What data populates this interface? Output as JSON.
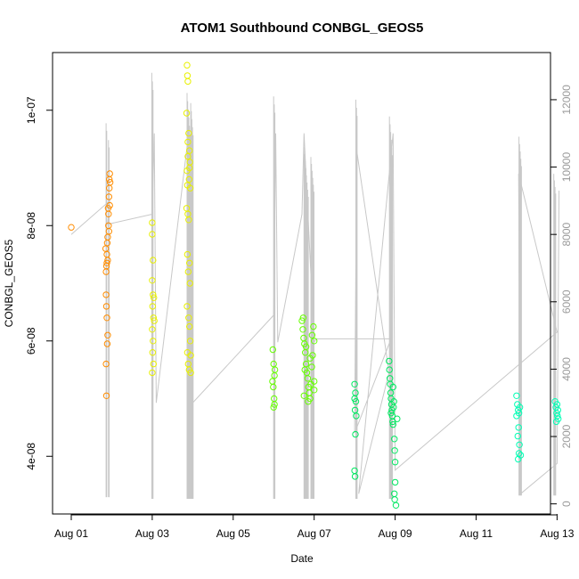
{
  "chart_data": {
    "type": "scatter",
    "title": "ATOM1 Southbound CONBGL_GEOS5",
    "xlabel": "Date",
    "ylabel": "CONBGL_GEOS5",
    "x_tick_labels": [
      "Aug 01",
      "Aug 03",
      "Aug 05",
      "Aug 07",
      "Aug 09",
      "Aug 11",
      "Aug 13"
    ],
    "x_tick_values": [
      1,
      3,
      5,
      7,
      9,
      11,
      13
    ],
    "xlim": [
      1,
      13.3
    ],
    "y_left": {
      "scale_min": 3e-08,
      "scale_max": 1.1e-07,
      "ticks": [
        {
          "value": 4e-08,
          "label": "4e-08"
        },
        {
          "value": 6e-08,
          "label": "6e-08"
        },
        {
          "value": 8e-08,
          "label": "8e-08"
        },
        {
          "value": 1e-07,
          "label": "1e-07"
        }
      ]
    },
    "y_right": {
      "scale_min": -300,
      "scale_max": 13400,
      "ticks": [
        {
          "value": 0,
          "label": "0"
        },
        {
          "value": 2000,
          "label": "2000"
        },
        {
          "value": 4000,
          "label": "4000"
        },
        {
          "value": 6000,
          "label": "6000"
        },
        {
          "value": 8000,
          "label": "8000"
        },
        {
          "value": 10000,
          "label": "10000"
        },
        {
          "value": 12000,
          "label": "12000"
        }
      ]
    },
    "altitude_line_color": "#c8c8c8",
    "altitude_path": [
      [
        1.0,
        8000
      ],
      [
        1.95,
        9000
      ],
      [
        1.9,
        8300
      ],
      [
        3.0,
        8600
      ],
      [
        3.05,
        11000
      ],
      [
        3.1,
        3000
      ],
      [
        3.9,
        11000
      ],
      [
        4.0,
        3000
      ],
      [
        6.0,
        5600
      ],
      [
        6.05,
        11000
      ],
      [
        6.1,
        4800
      ],
      [
        6.7,
        8600
      ],
      [
        6.75,
        11000
      ],
      [
        7.0,
        4800
      ],
      [
        7.05,
        4900
      ],
      [
        8.9,
        4900
      ],
      [
        8.0,
        2100
      ],
      [
        8.05,
        10500
      ],
      [
        8.85,
        3900
      ],
      [
        8.1,
        300
      ],
      [
        8.95,
        11000
      ],
      [
        9.0,
        1000
      ],
      [
        13.0,
        5100
      ],
      [
        12.05,
        9800
      ],
      [
        12.1,
        300
      ],
      [
        13.0,
        1200
      ],
      [
        13.05,
        9300
      ]
    ],
    "altitude_spikes": [
      {
        "day": 1.86,
        "low": 200,
        "high": 11300,
        "n": 2
      },
      {
        "day": 1.92,
        "low": 200,
        "high": 10800,
        "n": 2
      },
      {
        "day": 2.99,
        "low": 150,
        "high": 12800,
        "n": 3
      },
      {
        "day": 3.86,
        "low": 150,
        "high": 12200,
        "n": 6
      },
      {
        "day": 3.95,
        "low": 150,
        "high": 11900,
        "n": 5
      },
      {
        "day": 6.0,
        "low": 150,
        "high": 12100,
        "n": 3
      },
      {
        "day": 6.75,
        "low": 150,
        "high": 10600,
        "n": 8
      },
      {
        "day": 6.92,
        "low": 150,
        "high": 10300,
        "n": 6
      },
      {
        "day": 8.03,
        "low": 150,
        "high": 12000,
        "n": 3
      },
      {
        "day": 8.86,
        "low": 150,
        "high": 11500,
        "n": 6
      },
      {
        "day": 12.06,
        "low": 250,
        "high": 10900,
        "n": 5
      },
      {
        "day": 12.92,
        "low": 250,
        "high": 9800,
        "n": 4
      }
    ],
    "series": [
      {
        "color": "#ff8c00",
        "points": [
          [
            1.0,
            7.97e-08
          ],
          [
            1.85,
            7.6e-08
          ],
          [
            1.87,
            7.3e-08
          ],
          [
            1.88,
            7.5e-08
          ],
          [
            1.9,
            7.4e-08
          ],
          [
            1.86,
            7.2e-08
          ],
          [
            1.89,
            7.7e-08
          ],
          [
            1.87,
            6.6e-08
          ],
          [
            1.88,
            6.4e-08
          ],
          [
            1.9,
            6.1e-08
          ],
          [
            1.89,
            5.95e-08
          ],
          [
            1.86,
            5.6e-08
          ],
          [
            1.87,
            5.05e-08
          ],
          [
            1.91,
            8.3e-08
          ],
          [
            1.93,
            8.5e-08
          ],
          [
            1.94,
            8.8e-08
          ],
          [
            1.95,
            8.9e-08
          ],
          [
            1.92,
            8.2e-08
          ],
          [
            1.93,
            7.9e-08
          ],
          [
            1.94,
            8.65e-08
          ],
          [
            1.95,
            8.35e-08
          ],
          [
            1.92,
            8e-08
          ],
          [
            1.96,
            8.75e-08
          ],
          [
            1.88,
            7.35e-08
          ],
          [
            1.9,
            7.8e-08
          ],
          [
            1.86,
            6.8e-08
          ]
        ]
      },
      {
        "color": "#e8f000",
        "points": [
          [
            3.0,
            8.05e-08
          ],
          [
            3.0,
            7.85e-08
          ],
          [
            3.02,
            7.4e-08
          ],
          [
            3.0,
            7.05e-08
          ],
          [
            3.02,
            6.8e-08
          ],
          [
            3.01,
            6.6e-08
          ],
          [
            3.03,
            6.4e-08
          ],
          [
            3.0,
            6.2e-08
          ],
          [
            3.02,
            6e-08
          ],
          [
            3.01,
            5.8e-08
          ],
          [
            3.03,
            5.6e-08
          ],
          [
            3.0,
            5.45e-08
          ],
          [
            3.05,
            6.35e-08
          ],
          [
            3.04,
            6.75e-08
          ],
          [
            3.86,
            1.078e-07
          ],
          [
            3.87,
            1.06e-07
          ],
          [
            3.88,
            1.05e-07
          ],
          [
            3.85,
            9.95e-08
          ],
          [
            3.9,
            9.6e-08
          ],
          [
            3.92,
            9.3e-08
          ],
          [
            3.88,
            9.2e-08
          ],
          [
            3.93,
            9.1e-08
          ],
          [
            3.86,
            8.95e-08
          ],
          [
            3.91,
            8.8e-08
          ],
          [
            3.87,
            8.7e-08
          ],
          [
            3.94,
            8.65e-08
          ],
          [
            3.85,
            8.3e-08
          ],
          [
            3.88,
            8.2e-08
          ],
          [
            3.9,
            8.1e-08
          ],
          [
            3.87,
            7.5e-08
          ],
          [
            3.92,
            7.35e-08
          ],
          [
            3.89,
            7.2e-08
          ],
          [
            3.93,
            7e-08
          ],
          [
            3.86,
            6.6e-08
          ],
          [
            3.9,
            6.4e-08
          ],
          [
            3.92,
            6.25e-08
          ],
          [
            3.94,
            6e-08
          ],
          [
            3.87,
            5.8e-08
          ],
          [
            3.89,
            5.6e-08
          ],
          [
            3.91,
            5.5e-08
          ],
          [
            3.95,
            5.45e-08
          ],
          [
            3.88,
            9.45e-08
          ],
          [
            3.92,
            9e-08
          ],
          [
            3.95,
            5.75e-08
          ]
        ]
      },
      {
        "color": "#66ff00",
        "points": [
          [
            5.98,
            5.85e-08
          ],
          [
            6.0,
            5.6e-08
          ],
          [
            6.02,
            5.4e-08
          ],
          [
            5.99,
            5.2e-08
          ],
          [
            6.01,
            5e-08
          ],
          [
            6.0,
            4.85e-08
          ],
          [
            6.03,
            5.5e-08
          ],
          [
            5.97,
            5.3e-08
          ],
          [
            6.02,
            4.9e-08
          ],
          [
            6.7,
            6.35e-08
          ],
          [
            6.72,
            6.2e-08
          ],
          [
            6.74,
            6.05e-08
          ],
          [
            6.76,
            5.95e-08
          ],
          [
            6.78,
            5.8e-08
          ],
          [
            6.8,
            5.6e-08
          ],
          [
            6.82,
            5.45e-08
          ],
          [
            6.84,
            5.35e-08
          ],
          [
            6.86,
            5.2e-08
          ],
          [
            6.88,
            5.1e-08
          ],
          [
            6.9,
            5e-08
          ],
          [
            6.92,
            5.25e-08
          ],
          [
            6.94,
            5.55e-08
          ],
          [
            6.96,
            5.75e-08
          ],
          [
            6.98,
            6.25e-08
          ],
          [
            7.0,
            6e-08
          ],
          [
            7.0,
            5.3e-08
          ],
          [
            6.75,
            5.05e-08
          ],
          [
            6.85,
            4.95e-08
          ],
          [
            6.73,
            6.4e-08
          ],
          [
            6.8,
            5.9e-08
          ],
          [
            6.9,
            5.7e-08
          ],
          [
            7.0,
            5.15e-08
          ],
          [
            6.95,
            6.1e-08
          ],
          [
            6.77,
            5.5e-08
          ]
        ]
      },
      {
        "color": "#00e860",
        "points": [
          [
            8.0,
            5.25e-08
          ],
          [
            8.02,
            5.1e-08
          ],
          [
            8.03,
            4.95e-08
          ],
          [
            8.01,
            4.8e-08
          ],
          [
            8.04,
            4.7e-08
          ],
          [
            8.0,
            5e-08
          ],
          [
            8.02,
            4.38e-08
          ],
          [
            8.0,
            3.75e-08
          ],
          [
            8.01,
            3.65e-08
          ],
          [
            8.85,
            5.65e-08
          ],
          [
            8.86,
            5.5e-08
          ],
          [
            8.87,
            5.35e-08
          ],
          [
            8.88,
            5.25e-08
          ],
          [
            8.89,
            5.1e-08
          ],
          [
            8.9,
            5e-08
          ],
          [
            8.91,
            4.9e-08
          ],
          [
            8.92,
            4.8e-08
          ],
          [
            8.93,
            4.7e-08
          ],
          [
            8.94,
            4.6e-08
          ],
          [
            8.95,
            4.55e-08
          ],
          [
            8.96,
            4.85e-08
          ],
          [
            8.97,
            4.95e-08
          ],
          [
            8.98,
            4.3e-08
          ],
          [
            8.99,
            4.1e-08
          ],
          [
            9.0,
            3.9e-08
          ],
          [
            9.0,
            3.55e-08
          ],
          [
            8.98,
            3.35e-08
          ],
          [
            8.99,
            3.25e-08
          ],
          [
            9.02,
            3.15e-08
          ],
          [
            8.9,
            4.75e-08
          ],
          [
            8.95,
            5.2e-08
          ],
          [
            9.05,
            4.65e-08
          ]
        ]
      },
      {
        "color": "#00ffb4",
        "points": [
          [
            12.0,
            5.05e-08
          ],
          [
            12.02,
            4.9e-08
          ],
          [
            12.04,
            4.8e-08
          ],
          [
            12.06,
            4.75e-08
          ],
          [
            12.0,
            4.7e-08
          ],
          [
            12.08,
            4.85e-08
          ],
          [
            12.05,
            4.5e-08
          ],
          [
            12.03,
            4.35e-08
          ],
          [
            12.07,
            4.2e-08
          ],
          [
            12.06,
            4.05e-08
          ],
          [
            12.1,
            4.02e-08
          ],
          [
            12.04,
            3.95e-08
          ],
          [
            12.95,
            4.95e-08
          ],
          [
            12.97,
            4.85e-08
          ],
          [
            12.99,
            4.75e-08
          ],
          [
            13.01,
            4.7e-08
          ],
          [
            13.03,
            4.65e-08
          ],
          [
            13.0,
            4.9e-08
          ],
          [
            13.02,
            4.8e-08
          ],
          [
            12.98,
            4.6e-08
          ]
        ]
      }
    ]
  }
}
